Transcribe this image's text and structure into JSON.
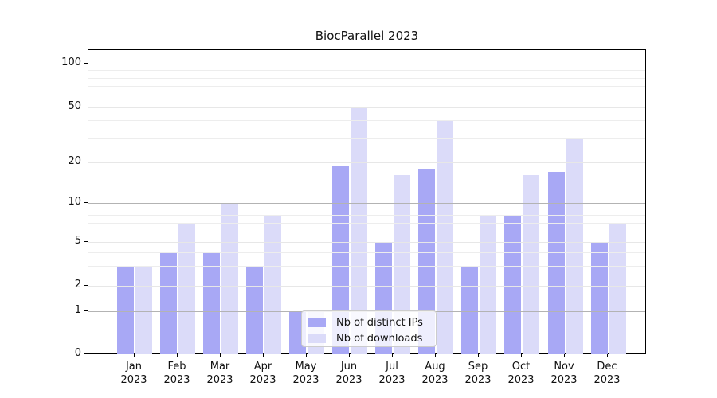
{
  "title": "BiocParallel 2023",
  "chart_data": {
    "type": "bar",
    "title": "BiocParallel 2023",
    "categories": [
      "Jan",
      "Feb",
      "Mar",
      "Apr",
      "May",
      "Jun",
      "Jul",
      "Aug",
      "Sep",
      "Oct",
      "Nov",
      "Dec"
    ],
    "x_tick_second_line": "2023",
    "series": [
      {
        "name": "Nb of distinct IPs",
        "color": "#a8a8f5",
        "values": [
          3,
          4,
          4,
          3,
          1,
          19,
          5,
          18,
          3,
          8,
          17,
          5
        ]
      },
      {
        "name": "Nb of downloads",
        "color": "#dbdbf9",
        "values": [
          3,
          7,
          10,
          8,
          1,
          50,
          16,
          40,
          8,
          16,
          30,
          7
        ]
      }
    ],
    "y_ticks": [
      0,
      1,
      2,
      5,
      10,
      20,
      50,
      100
    ],
    "y_decade_lines": [
      1,
      10,
      100
    ],
    "y_minor_gridlines": [
      3,
      4,
      6,
      7,
      8,
      9,
      30,
      40,
      60,
      70,
      80,
      90
    ],
    "yscale": "symlog-like",
    "ylim": [
      0,
      125
    ],
    "grid": true,
    "legend_position": "lower-center-over-plot"
  },
  "legend": {
    "items": [
      {
        "label": "Nb of distinct IPs",
        "color": "#a8a8f5"
      },
      {
        "label": "Nb of downloads",
        "color": "#dbdbf9"
      }
    ]
  }
}
